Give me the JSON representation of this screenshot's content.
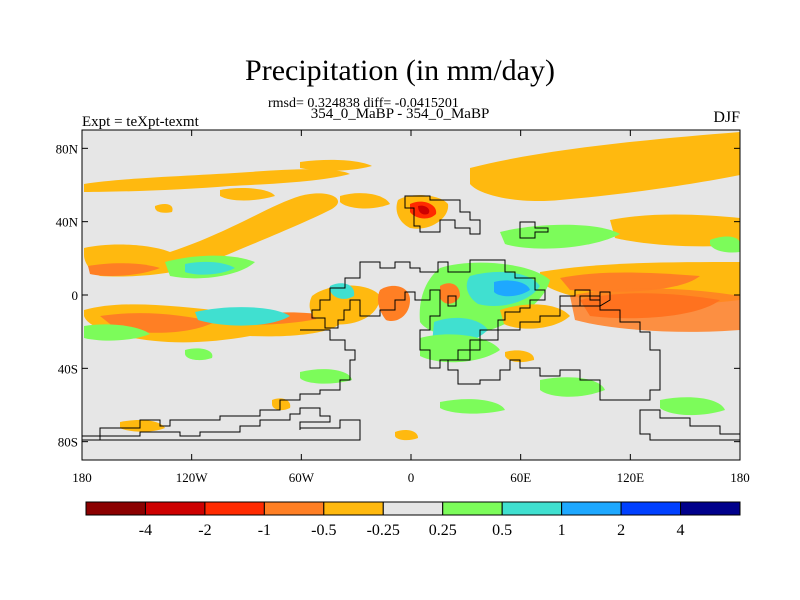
{
  "chart_data": {
    "type": "heatmap",
    "title": "Precipitation (in mm/day)",
    "stats": "rmsd= 0.324838 diff= -0.0415201",
    "subtitle": "354_0_MaBP - 354_0_MaBP",
    "left_label": "Expt = teXpt-texmt",
    "season": "DJF",
    "x_ticks": [
      "180",
      "120W",
      "60W",
      "0",
      "60E",
      "120E",
      "180"
    ],
    "y_ticks": [
      "80N",
      "40N",
      "0",
      "40S",
      "80S"
    ],
    "x_range": [
      -180,
      180
    ],
    "y_range": [
      -90,
      90
    ],
    "colorbar": {
      "levels": [
        "-4",
        "-2",
        "-1",
        "-0.5",
        "-0.25",
        "0.25",
        "0.5",
        "1",
        "2",
        "4"
      ],
      "colors": [
        "#8b0000",
        "#cd0000",
        "#ff2a00",
        "#ff7f24",
        "#ffb90f",
        "#e5e5e5",
        "#7cfc5a",
        "#40e0d0",
        "#1ea8ff",
        "#0040ff",
        "#00008b"
      ]
    }
  }
}
